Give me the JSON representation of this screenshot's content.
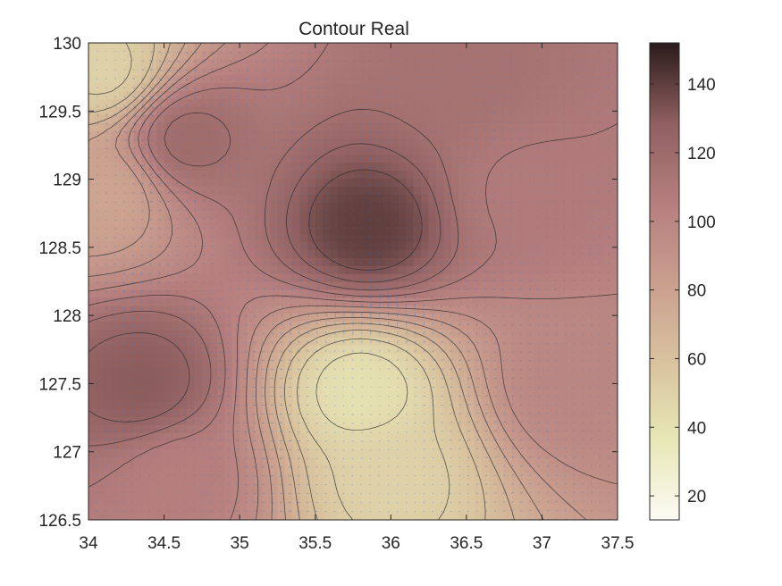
{
  "chart_data": {
    "type": "heatmap",
    "title": "Contour Real",
    "xlabel": "",
    "ylabel": "",
    "xlim": [
      34,
      37.5
    ],
    "ylim": [
      126.5,
      130
    ],
    "xticks": [
      34,
      34.5,
      35,
      35.5,
      36,
      36.5,
      37,
      37.5
    ],
    "xtick_labels": [
      "34",
      "34.5",
      "35",
      "35.5",
      "36",
      "36.5",
      "37",
      "37.5"
    ],
    "yticks": [
      126.5,
      127,
      127.5,
      128,
      128.5,
      129,
      129.5,
      130
    ],
    "ytick_labels": [
      "126.5",
      "127",
      "127.5",
      "128",
      "128.5",
      "129",
      "129.5",
      "130"
    ],
    "colorbar": {
      "range": [
        13,
        152
      ],
      "ticks": [
        20,
        40,
        60,
        80,
        100,
        120,
        140
      ],
      "tick_labels": [
        "20",
        "40",
        "60",
        "80",
        "100",
        "120",
        "140"
      ],
      "colormap": "pink-reversed",
      "stops": [
        "#fbfbf4",
        "#e7e7b6",
        "#d8c29e",
        "#c99e8e",
        "#b57e7e",
        "#8f5f5f",
        "#2b1b1b"
      ]
    },
    "overlay": "filled contours with quiver field",
    "quiver_color": "#3a78c3",
    "contour_line_color": "#2a2a2a",
    "features": [
      {
        "x": 35.85,
        "y": 128.65,
        "value": 140
      },
      {
        "x": 34.35,
        "y": 127.5,
        "value": 130
      },
      {
        "x": 34.65,
        "y": 129.3,
        "value": 120
      },
      {
        "x": 36.5,
        "y": 129.8,
        "value": 115
      },
      {
        "x": 35.8,
        "y": 127.45,
        "value": 40
      },
      {
        "x": 34.1,
        "y": 129.8,
        "value": 50
      },
      {
        "x": 37.2,
        "y": 127.5,
        "value": 100
      },
      {
        "x": 36.9,
        "y": 128.9,
        "value": 108
      },
      {
        "x": 34.1,
        "y": 128.9,
        "value": 78
      },
      {
        "x": 34.6,
        "y": 126.8,
        "value": 105
      },
      {
        "x": 36.0,
        "y": 126.8,
        "value": 50
      }
    ]
  }
}
